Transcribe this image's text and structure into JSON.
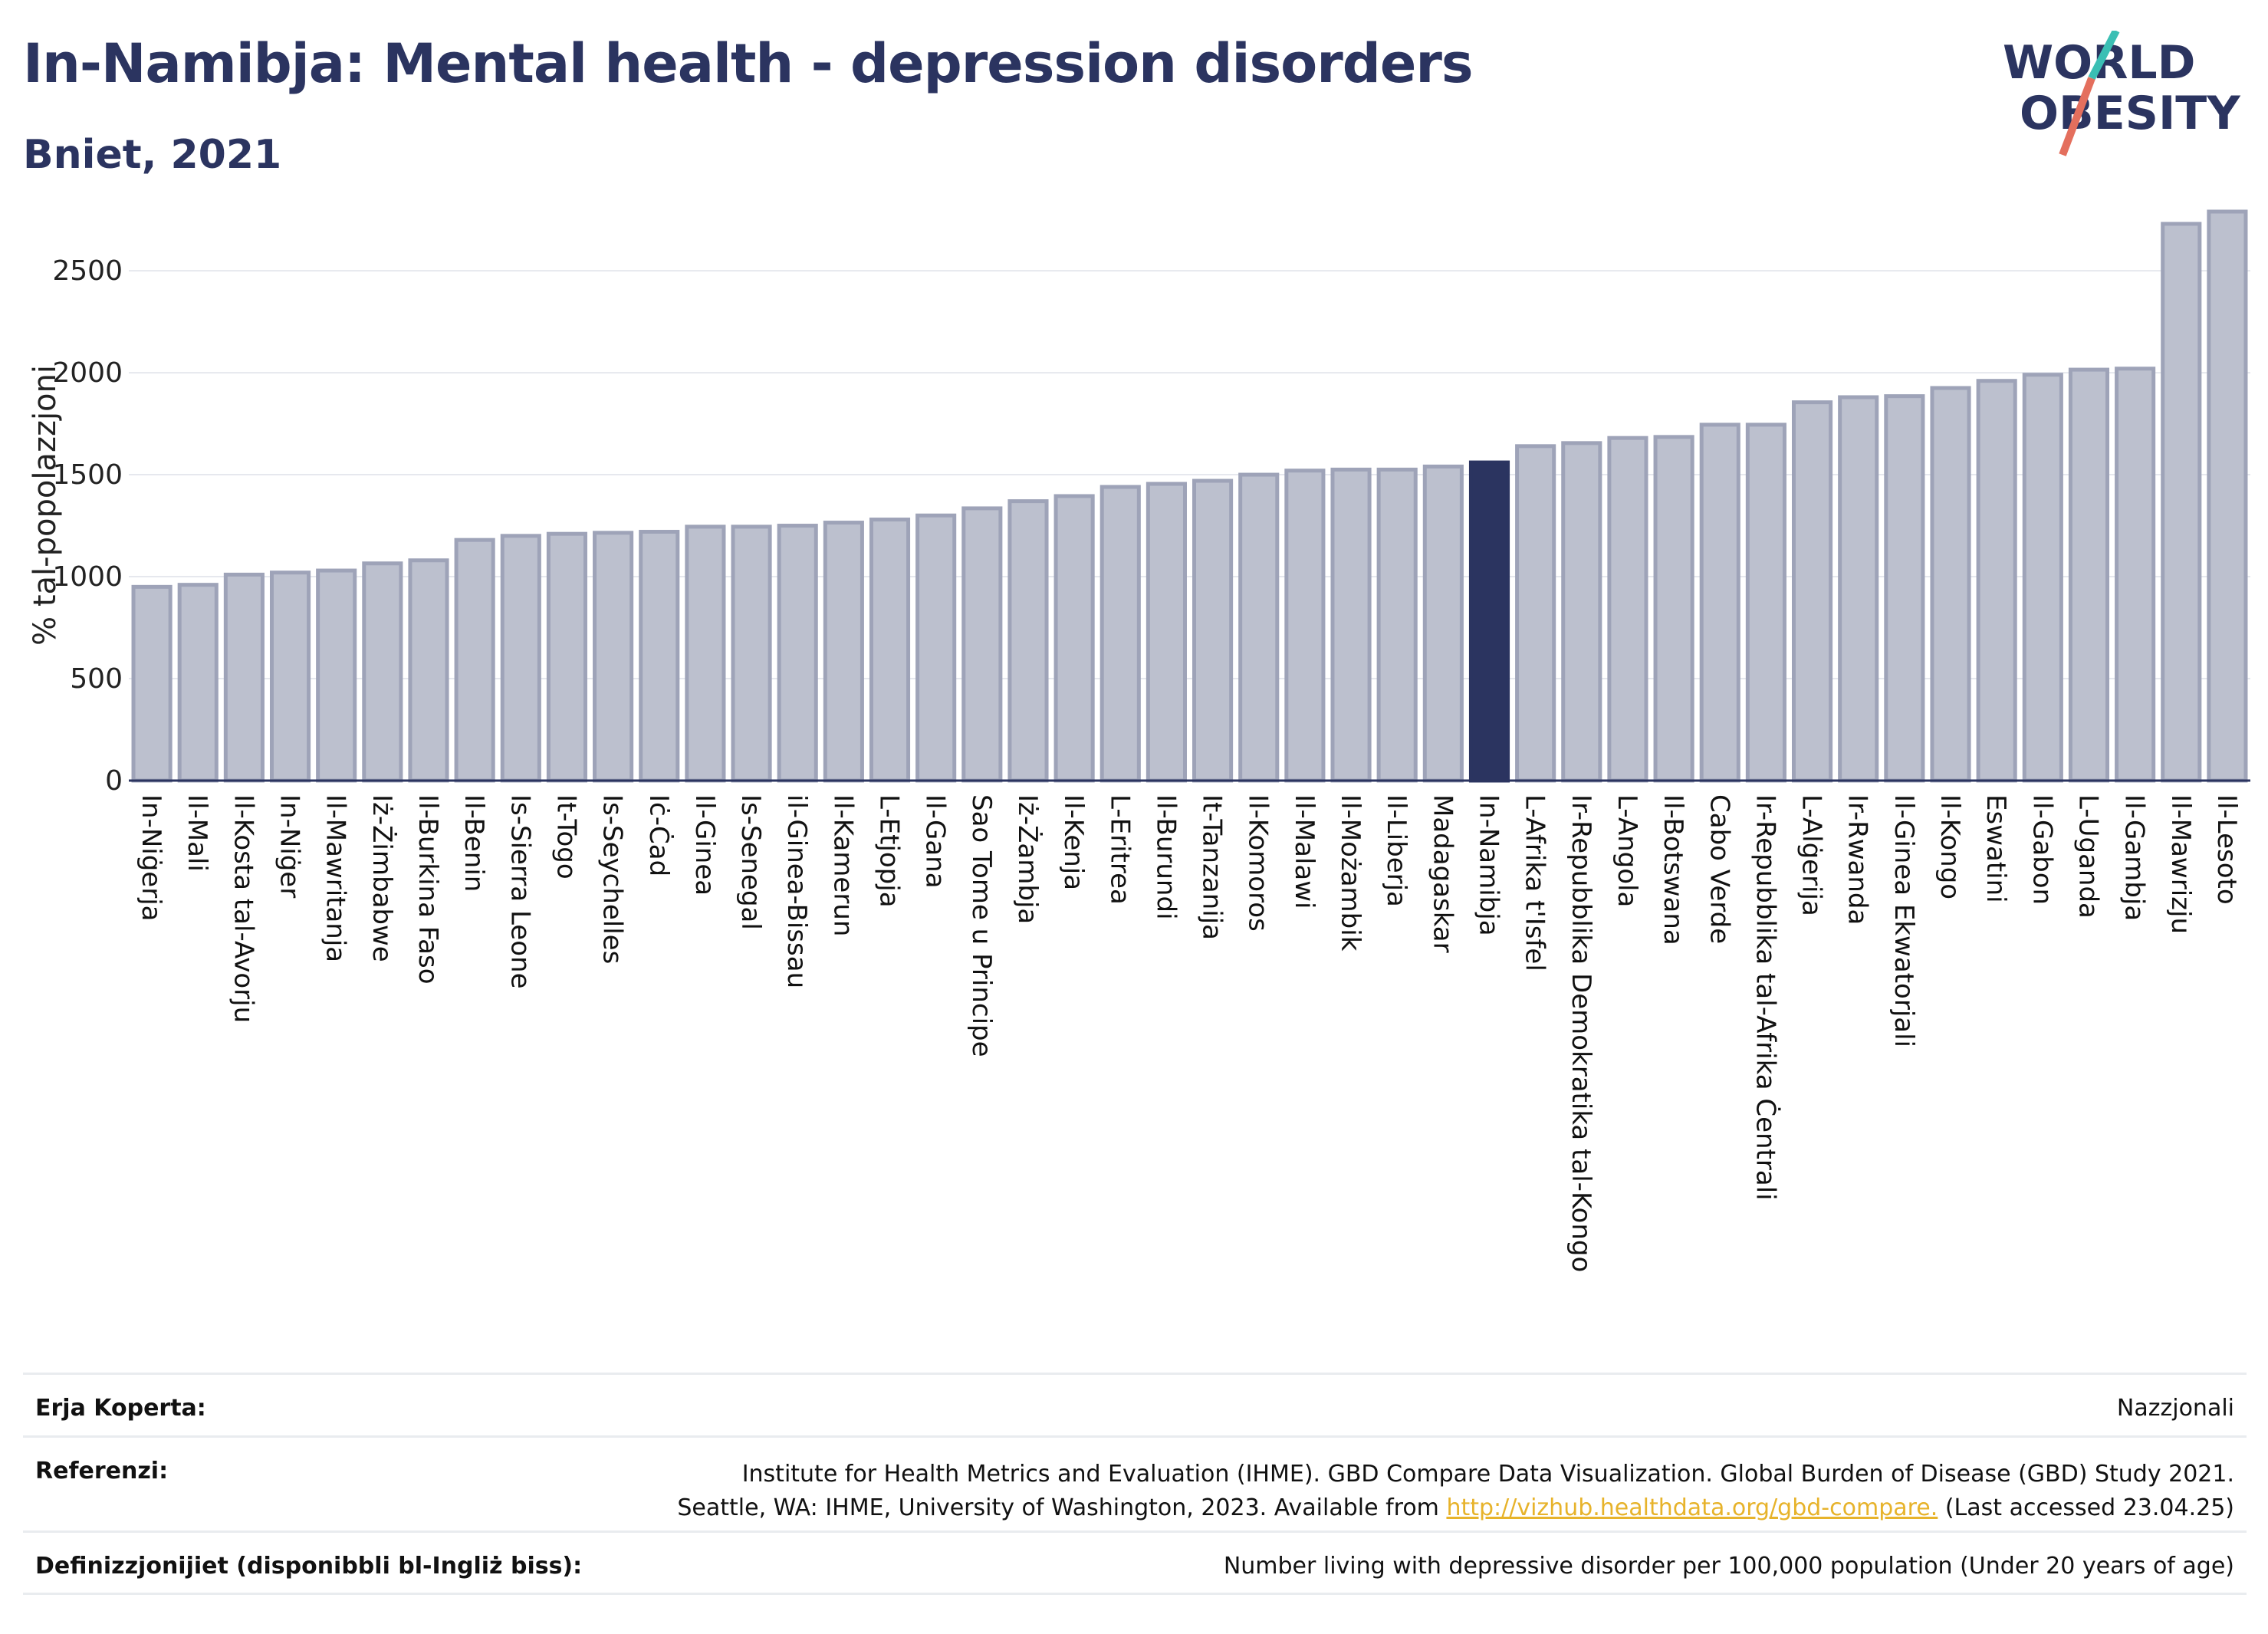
{
  "header": {
    "title": "In-Namibja: Mental health - depression disorders",
    "subtitle": "Bniet, 2021"
  },
  "logo": {
    "line1": "WORLD",
    "line2": "OBESITY"
  },
  "colors": {
    "highlight": "#2b3460",
    "bar": "#bcc0ce",
    "bar_border": "#9ea3b8",
    "link": "#e7b32b",
    "title": "#2b3460"
  },
  "chart_data": {
    "type": "bar",
    "ylabel": "% tal-popolazzjoni",
    "xlabel": "",
    "ylim": [
      0,
      2850
    ],
    "yticks": [
      0,
      500,
      1000,
      1500,
      2000,
      2500
    ],
    "grid": true,
    "highlight": "In-Namibja",
    "categories": [
      "In-Niġerja",
      "Il-Mali",
      "Il-Kosta tal-Avorju",
      "In-Niġer",
      "Il-Mawritanja",
      "Iż-Żimbabwe",
      "Il-Burkina Faso",
      "Il-Benin",
      "Is-Sierra Leone",
      "It-Togo",
      "Is-Seychelles",
      "Iċ-Ċad",
      "Il-Ginea",
      "Is-Senegal",
      "il-Ginea-Bissau",
      "Il-Kamerun",
      "L-Etjopja",
      "Il-Gana",
      "Sao Tome u Principe",
      "Iż-Żambja",
      "Il-Kenja",
      "L-Eritrea",
      "Il-Burundi",
      "It-Tanzanija",
      "Il-Komoros",
      "Il-Malawi",
      "Il-Możambik",
      "Il-Liberja",
      "Madagaskar",
      "In-Namibja",
      "L-Afrika t'Isfel",
      "Ir-Repubblika Demokratika tal-Kongo",
      "L-Angola",
      "Il-Botswana",
      "Cabo Verde",
      "Ir-Repubblika tal-Afrika Ċentrali",
      "L-Alġerija",
      "Ir-Rwanda",
      "Il-Ginea Ekwatorjali",
      "Il-Kongo",
      "Eswatini",
      "Il-Gabon",
      "L-Uganda",
      "Il-Gambja",
      "Il-Mawrizju",
      "Il-Lesoto"
    ],
    "values": [
      950,
      960,
      1010,
      1020,
      1030,
      1065,
      1080,
      1180,
      1200,
      1210,
      1215,
      1220,
      1245,
      1245,
      1250,
      1265,
      1280,
      1300,
      1335,
      1370,
      1395,
      1440,
      1455,
      1470,
      1500,
      1520,
      1525,
      1525,
      1540,
      1560,
      1640,
      1655,
      1680,
      1685,
      1745,
      1745,
      1855,
      1880,
      1885,
      1925,
      1960,
      1990,
      2015,
      2020,
      2730,
      2790
    ]
  },
  "footer": {
    "coverage_label": "Erja Koperta:",
    "coverage_value": "Nazzjonali",
    "references_label": "Referenzi:",
    "references_line1": "Institute for Health Metrics and Evaluation (IHME). GBD Compare Data Visualization. Global Burden of Disease (GBD) Study 2021.",
    "references_line2_pre": "Seattle, WA: IHME, University of Washington, 2023. Available from ",
    "references_link": "http://vizhub.healthdata.org/gbd-compare.",
    "references_line2_post": " (Last accessed 23.04.25)",
    "definitions_label": "Definizzjonijiet (disponibbli bl-Ingliż biss):",
    "definitions_value": "Number living with depressive disorder per 100,000 population (Under 20 years of age)"
  }
}
